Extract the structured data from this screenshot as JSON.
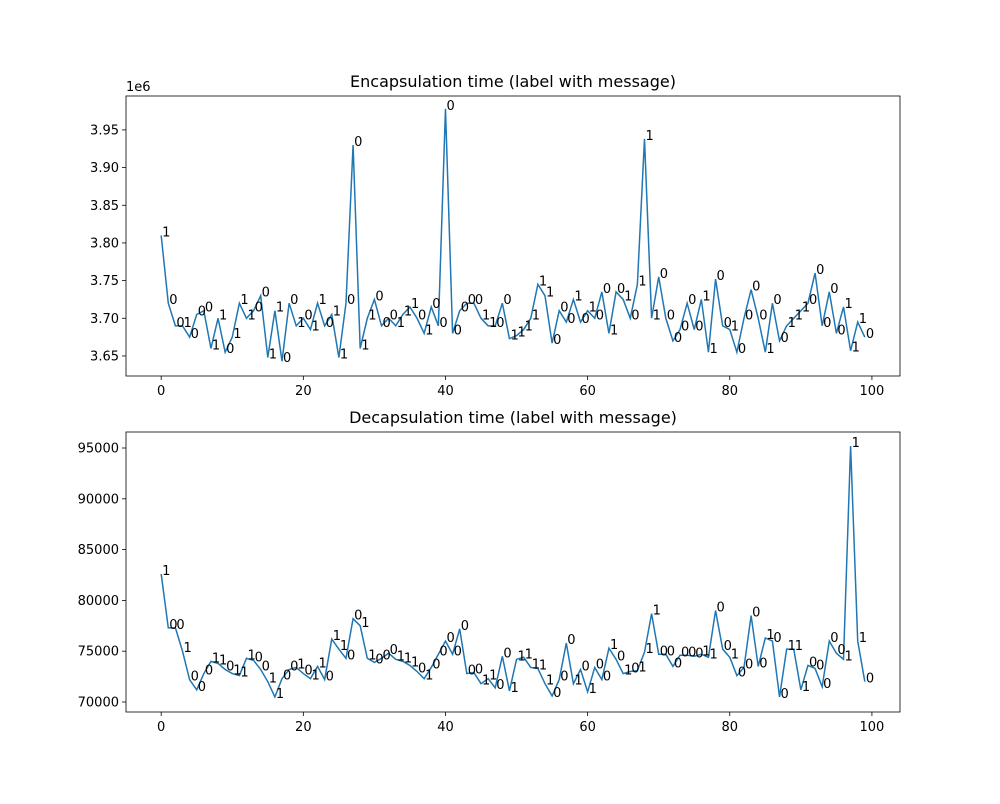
{
  "chart_data": [
    {
      "type": "line",
      "title": "Encapsulation time (label with message)",
      "y_offset_label": "1e6",
      "x": [
        0,
        1,
        2,
        3,
        4,
        5,
        6,
        7,
        8,
        9,
        10,
        11,
        12,
        13,
        14,
        15,
        16,
        17,
        18,
        19,
        20,
        21,
        22,
        23,
        24,
        25,
        26,
        27,
        28,
        29,
        30,
        31,
        32,
        33,
        34,
        35,
        36,
        37,
        38,
        39,
        40,
        41,
        42,
        43,
        44,
        45,
        46,
        47,
        48,
        49,
        50,
        51,
        52,
        53,
        54,
        55,
        56,
        57,
        58,
        59,
        60,
        61,
        62,
        63,
        64,
        65,
        66,
        67,
        68,
        69,
        70,
        71,
        72,
        73,
        74,
        75,
        76,
        77,
        78,
        79,
        80,
        81,
        82,
        83,
        84,
        85,
        86,
        87,
        88,
        89,
        90,
        91,
        92,
        93,
        94,
        95,
        96,
        97,
        98,
        99
      ],
      "series": [
        {
          "color": "#1f77b4",
          "values": [
            3.81,
            3.72,
            3.69,
            3.69,
            3.675,
            3.705,
            3.71,
            3.66,
            3.7,
            3.655,
            3.675,
            3.72,
            3.7,
            3.71,
            3.73,
            3.648,
            3.71,
            3.643,
            3.72,
            3.69,
            3.7,
            3.685,
            3.72,
            3.69,
            3.705,
            3.648,
            3.72,
            3.93,
            3.66,
            3.7,
            3.725,
            3.69,
            3.7,
            3.69,
            3.705,
            3.715,
            3.7,
            3.68,
            3.715,
            3.69,
            3.978,
            3.68,
            3.71,
            3.72,
            3.72,
            3.7,
            3.69,
            3.69,
            3.72,
            3.673,
            3.677,
            3.685,
            3.7,
            3.745,
            3.73,
            3.667,
            3.71,
            3.695,
            3.725,
            3.695,
            3.71,
            3.7,
            3.735,
            3.68,
            3.735,
            3.725,
            3.7,
            3.745,
            3.938,
            3.7,
            3.755,
            3.7,
            3.67,
            3.685,
            3.72,
            3.685,
            3.725,
            3.655,
            3.752,
            3.69,
            3.685,
            3.655,
            3.7,
            3.738,
            3.7,
            3.655,
            3.72,
            3.67,
            3.69,
            3.7,
            3.71,
            3.72,
            3.76,
            3.69,
            3.735,
            3.68,
            3.715,
            3.657,
            3.695,
            3.675
          ],
          "point_labels": [
            "1",
            "0",
            "0",
            "1",
            "0",
            "0",
            "0",
            "1",
            "1",
            "0",
            "1",
            "1",
            "1",
            "0",
            "0",
            "1",
            "1",
            "0",
            "0",
            "1",
            "0",
            "1",
            "1",
            "0",
            "1",
            "1",
            "0",
            "0",
            "1",
            "1",
            "0",
            "0",
            "0",
            "1",
            "1",
            "1",
            "0",
            "1",
            "0",
            "0",
            "0",
            "0",
            "0",
            "0",
            "0",
            "1",
            "1",
            "0",
            "0",
            "1",
            "1",
            "1",
            "1",
            "1",
            "1",
            "0",
            "0",
            "0",
            "1",
            "0",
            "1",
            "0",
            "0",
            "1",
            "0",
            "1",
            "0",
            "1",
            "1",
            "1",
            "0",
            "0",
            "0",
            "0",
            "0",
            "0",
            "1",
            "1",
            "0",
            "0",
            "1",
            "0",
            "0",
            "0",
            "0",
            "1",
            "0",
            "0",
            "1",
            "1",
            "1",
            "0",
            "0",
            "0",
            "0",
            "0",
            "1",
            "1",
            "1",
            "0"
          ]
        }
      ],
      "xlim": [
        -4.95,
        103.95
      ],
      "xticks": [
        0,
        20,
        40,
        60,
        80,
        100
      ],
      "ylim": [
        3.6234,
        3.995
      ],
      "yticks": [
        3.65,
        {
          "value": 3.7,
          "label": "3.70"
        },
        3.75,
        {
          "value": 3.8,
          "label": "3.80"
        },
        3.85,
        {
          "value": 3.9,
          "label": "3.90"
        },
        3.95
      ]
    },
    {
      "type": "line",
      "title": "Decapsulation time (label with message)",
      "x": [
        0,
        1,
        2,
        3,
        4,
        5,
        6,
        7,
        8,
        9,
        10,
        11,
        12,
        13,
        14,
        15,
        16,
        17,
        18,
        19,
        20,
        21,
        22,
        23,
        24,
        25,
        26,
        27,
        28,
        29,
        30,
        31,
        32,
        33,
        34,
        35,
        36,
        37,
        38,
        39,
        40,
        41,
        42,
        43,
        44,
        45,
        46,
        47,
        48,
        49,
        50,
        51,
        52,
        53,
        54,
        55,
        56,
        57,
        58,
        59,
        60,
        61,
        62,
        63,
        64,
        65,
        66,
        67,
        68,
        69,
        70,
        71,
        72,
        73,
        74,
        75,
        76,
        77,
        78,
        79,
        80,
        81,
        82,
        83,
        84,
        85,
        86,
        87,
        88,
        89,
        90,
        91,
        92,
        93,
        94,
        95,
        96,
        97,
        98,
        99
      ],
      "series": [
        {
          "color": "#1f77b4",
          "values": [
            82600,
            77300,
            77300,
            75000,
            72200,
            71200,
            72800,
            74000,
            73800,
            73200,
            72800,
            72600,
            74300,
            74100,
            73200,
            72000,
            70500,
            72300,
            73200,
            73400,
            72800,
            72300,
            73500,
            72200,
            76200,
            75200,
            74300,
            78200,
            77500,
            74300,
            73900,
            74300,
            74800,
            74200,
            74000,
            73600,
            73000,
            72300,
            73400,
            74700,
            76000,
            74700,
            77200,
            72800,
            72900,
            71800,
            72300,
            71400,
            74500,
            71100,
            74200,
            74400,
            73400,
            73300,
            71800,
            70600,
            72200,
            75800,
            71800,
            73200,
            71000,
            73400,
            72200,
            75300,
            74200,
            72800,
            73000,
            73100,
            74900,
            78700,
            74700,
            74700,
            73500,
            74600,
            74600,
            74500,
            74700,
            74400,
            79000,
            75200,
            74400,
            72600,
            73400,
            78500,
            73500,
            76300,
            76000,
            70500,
            75200,
            75200,
            71200,
            73600,
            73300,
            71500,
            76000,
            74800,
            74200,
            95200,
            76000,
            72000
          ],
          "point_labels": [
            "1",
            "0",
            "0",
            "1",
            "0",
            "0",
            "0",
            "1",
            "1",
            "0",
            "1",
            "1",
            "1",
            "0",
            "0",
            "1",
            "1",
            "0",
            "0",
            "1",
            "0",
            "1",
            "1",
            "0",
            "1",
            "1",
            "0",
            "0",
            "1",
            "1",
            "0",
            "0",
            "0",
            "1",
            "1",
            "1",
            "0",
            "1",
            "0",
            "0",
            "0",
            "0",
            "0",
            "0",
            "0",
            "1",
            "1",
            "0",
            "0",
            "1",
            "1",
            "1",
            "1",
            "1",
            "1",
            "0",
            "0",
            "0",
            "1",
            "0",
            "1",
            "0",
            "0",
            "1",
            "0",
            "1",
            "0",
            "1",
            "1",
            "1",
            "0",
            "0",
            "0",
            "0",
            "0",
            "0",
            "1",
            "1",
            "0",
            "0",
            "1",
            "0",
            "0",
            "0",
            "0",
            "1",
            "0",
            "0",
            "1",
            "1",
            "1",
            "0",
            "0",
            "0",
            "0",
            "0",
            "1",
            "1",
            "1",
            "0"
          ]
        }
      ],
      "xlim": [
        -4.95,
        103.95
      ],
      "xticks": [
        0,
        20,
        40,
        60,
        80,
        100
      ],
      "ylim": [
        69016,
        96575
      ],
      "yticks": [
        70000,
        75000,
        80000,
        85000,
        90000,
        95000
      ]
    }
  ]
}
